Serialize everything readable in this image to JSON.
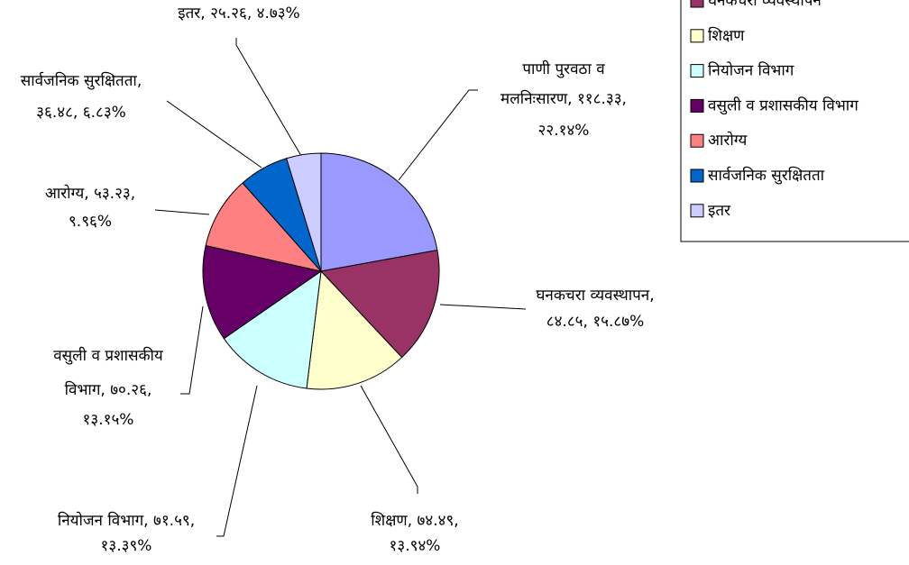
{
  "chart_data": {
    "type": "pie",
    "categories": [
      "पाणी पुरवठा व मलनिःसारण",
      "घनकचरा व्यवस्थापन",
      "शिक्षण",
      "नियोजन विभाग",
      "वसुली व प्रशासकीय विभाग",
      "आरोग्य",
      "सार्वजनिक सुरक्षितता",
      "इतर"
    ],
    "values": [
      118.33,
      84.85,
      74.49,
      71.59,
      70.26,
      53.23,
      36.48,
      25.26
    ],
    "value_labels": [
      [
        "पाणी पुरवठा व",
        "मलनिःसारण, ११८.३३,",
        "२२.१४%"
      ],
      [
        "घनकचरा व्यवस्थापन,",
        "८४.८५, १५.८७%"
      ],
      [
        "शिक्षण, ७४.४९,",
        "१३.९४%"
      ],
      [
        "नियोजन विभाग, ७१.५९,",
        "१३.३९%"
      ],
      [
        "वसुली व प्रशासकीय",
        "विभाग, ७०.२६,",
        "१३.१५%"
      ],
      [
        "आरोग्य, ५३.२३,",
        "९.९६%"
      ],
      [
        "सार्वजनिक सुरक्षितता,",
        "३६.४८, ६.८३%"
      ],
      [
        "इतर, २५.२६, ४.७३%"
      ]
    ],
    "colors": [
      "#9999ff",
      "#993366",
      "#ffffcc",
      "#ccffff",
      "#660066",
      "#ff8080",
      "#0066cc",
      "#ccccff"
    ],
    "legend": "top-right"
  }
}
